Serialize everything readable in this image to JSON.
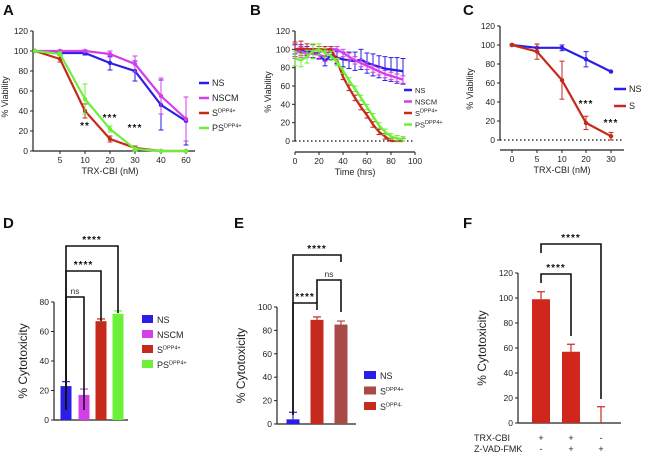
{
  "chart_data": [
    {
      "panel": "A",
      "type": "line",
      "title": "",
      "xlabel": "TRX-CBI (nM)",
      "ylabel": "% Viability",
      "ylim": [
        0,
        120
      ],
      "yticks": [
        "0",
        "20",
        "40",
        "60",
        "80",
        "100",
        "120"
      ],
      "x": [
        0,
        5,
        10,
        20,
        30,
        40,
        60
      ],
      "xticks": [
        "5",
        "10",
        "20",
        "30",
        "40",
        "60"
      ],
      "legend_position": "right",
      "series": [
        {
          "name": "NS",
          "sup": "",
          "color": "#2b1ee6",
          "values": [
            100,
            98,
            98,
            88,
            80,
            46,
            30
          ],
          "errors": [
            0,
            2,
            2,
            7,
            10,
            25,
            24
          ]
        },
        {
          "name": "NSCM",
          "sup": "",
          "color": "#d43ee8",
          "values": [
            100,
            100,
            100,
            97,
            87,
            55,
            32
          ],
          "errors": [
            0,
            1,
            1,
            3,
            8,
            18,
            22
          ]
        },
        {
          "name": "S",
          "sup": "DPP4+",
          "color": "#c52a1c",
          "values": [
            100,
            92,
            40,
            12,
            3,
            0,
            0
          ],
          "errors": [
            0,
            3,
            7,
            3,
            2,
            0,
            0
          ]
        },
        {
          "name": "PS",
          "sup": "DPP4+",
          "color": "#6cf03a",
          "values": [
            100,
            97,
            52,
            22,
            2,
            0,
            0
          ],
          "errors": [
            0,
            2,
            15,
            3,
            2,
            0,
            0
          ]
        }
      ],
      "annotations": [
        {
          "text": "**",
          "x": 10,
          "y": 22
        },
        {
          "text": "***",
          "x": 20,
          "y": 30
        },
        {
          "text": "***",
          "x": 30,
          "y": 20
        }
      ]
    },
    {
      "panel": "B",
      "type": "line",
      "title": "",
      "xlabel": "Time (hrs)",
      "ylabel": "% Viability",
      "ylim": [
        0,
        120
      ],
      "xlim": [
        0,
        100
      ],
      "yticks": [
        "0",
        "20",
        "40",
        "60",
        "80",
        "100",
        "120"
      ],
      "xticks": [
        "0",
        "20",
        "40",
        "60",
        "80",
        "100"
      ],
      "reference_line_y": 0,
      "legend_position": "right",
      "x": [
        0,
        5,
        10,
        15,
        20,
        25,
        30,
        35,
        40,
        45,
        50,
        55,
        60,
        65,
        70,
        75,
        80,
        85,
        90
      ],
      "series": [
        {
          "name": "NS",
          "sup": "",
          "color": "#2b1ee6",
          "values": [
            100,
            100,
            98,
            96,
            95,
            87,
            94,
            91,
            89,
            88,
            87,
            89,
            85,
            83,
            81,
            79,
            78,
            77,
            76
          ],
          "errors": [
            5,
            5,
            5,
            5,
            5,
            5,
            5,
            7,
            8,
            9,
            10,
            11,
            11,
            12,
            12,
            13,
            13,
            14,
            14
          ]
        },
        {
          "name": "NSCM",
          "sup": "",
          "color": "#d43ee8",
          "values": [
            98,
            97,
            96,
            95,
            94,
            92,
            100,
            100,
            96,
            92,
            88,
            85,
            82,
            79,
            76,
            73,
            71,
            69,
            67
          ],
          "errors": [
            8,
            6,
            5,
            5,
            5,
            5,
            3,
            3,
            4,
            4,
            4,
            4,
            4,
            4,
            4,
            4,
            4,
            4,
            4
          ]
        },
        {
          "name": "S",
          "sup": "DPP4+",
          "color": "#c52a1c",
          "values": [
            100,
            101,
            100,
            100,
            100,
            100,
            100,
            88,
            70,
            58,
            47,
            37,
            28,
            18,
            10,
            5,
            0,
            0,
            0
          ],
          "errors": [
            8,
            8,
            6,
            5,
            3,
            3,
            3,
            3,
            3,
            3,
            3,
            3,
            3,
            3,
            3,
            3,
            3,
            3,
            3
          ]
        },
        {
          "name": "PS",
          "sup": "DPP4+",
          "color": "#6cf03a",
          "values": [
            90,
            88,
            92,
            98,
            100,
            96,
            93,
            86,
            77,
            66,
            57,
            47,
            37,
            27,
            17,
            10,
            5,
            3,
            2
          ],
          "errors": [
            8,
            7,
            7,
            8,
            6,
            5,
            5,
            4,
            3,
            3,
            3,
            3,
            3,
            3,
            3,
            3,
            3,
            3,
            3
          ]
        }
      ]
    },
    {
      "panel": "C",
      "type": "line",
      "title": "",
      "xlabel": "TRX-CBI (nM)",
      "ylabel": "% Viability",
      "ylim": [
        0,
        120
      ],
      "yticks": [
        "0",
        "20",
        "40",
        "60",
        "80",
        "100",
        "120"
      ],
      "x": [
        0,
        5,
        10,
        20,
        30
      ],
      "xticks": [
        "0",
        "5",
        "10",
        "20",
        "30"
      ],
      "reference_line_y": 0,
      "legend_position": "right",
      "series": [
        {
          "name": "NS",
          "sup": "",
          "color": "#2b1ee6",
          "values": [
            100,
            97,
            97,
            85,
            72
          ],
          "errors": [
            1,
            4,
            3,
            8,
            0
          ]
        },
        {
          "name": "S",
          "sup": "",
          "color": "#c52a1c",
          "values": [
            100,
            93,
            63,
            18,
            4
          ],
          "errors": [
            1,
            8,
            20,
            7,
            4
          ]
        }
      ],
      "annotations": [
        {
          "text": "***",
          "x": 20,
          "y": 35
        },
        {
          "text": "***",
          "x": 30,
          "y": 15
        }
      ]
    },
    {
      "panel": "D",
      "type": "bar",
      "title": "",
      "xlabel": "",
      "ylabel": "% Cytotoxicity",
      "ylim": [
        0,
        80
      ],
      "yticks": [
        "0",
        "20",
        "40",
        "60",
        "80"
      ],
      "categories": [
        "NS",
        "NSCM",
        "SDPP4+",
        "PSDPP4+"
      ],
      "legend": [
        {
          "name": "NS",
          "sup": "",
          "color": "#2b1ee6"
        },
        {
          "name": "NSCM",
          "sup": "",
          "color": "#d43ee8"
        },
        {
          "name": "S",
          "sup": "DPP4+",
          "color": "#c52a1c"
        },
        {
          "name": "PS",
          "sup": "DPP4+",
          "color": "#6cf03a"
        }
      ],
      "values": [
        23,
        17,
        67,
        72
      ],
      "errors": [
        3,
        4,
        1.5,
        2
      ],
      "legend_position": "right",
      "significance": [
        {
          "from": 0,
          "to": 1,
          "label": "ns"
        },
        {
          "from": 0,
          "to": 2,
          "label": "****"
        },
        {
          "from": 0,
          "to": 3,
          "label": "****"
        }
      ]
    },
    {
      "panel": "E",
      "type": "bar",
      "title": "",
      "xlabel": "",
      "ylabel": "% Cytotoxicity",
      "ylim": [
        0,
        100
      ],
      "yticks": [
        "0",
        "20",
        "40",
        "60",
        "80",
        "100"
      ],
      "categories": [
        "NS",
        "SDPP4-",
        "SDPP4+"
      ],
      "bar_colors": [
        "#2b1ee6",
        "#c52a1c",
        "#a84a45"
      ],
      "legend": [
        {
          "name": "NS",
          "sup": "",
          "color": "#2b1ee6"
        },
        {
          "name": "S",
          "sup": "DPP4+",
          "color": "#a84a45"
        },
        {
          "name": "S",
          "sup": "DPP4-",
          "color": "#c52a1c"
        }
      ],
      "values": [
        4,
        89,
        85
      ],
      "errors": [
        6,
        2.5,
        3
      ],
      "legend_position": "right",
      "significance": [
        {
          "from": 0,
          "to": 1,
          "label": "****"
        },
        {
          "from": 1,
          "to": 2,
          "label": "ns"
        },
        {
          "from": 0,
          "to": 2,
          "label": "****"
        }
      ]
    },
    {
      "panel": "F",
      "type": "bar",
      "title": "",
      "xlabel": "",
      "ylabel": "% Cytotoxicity",
      "ylim": [
        0,
        120
      ],
      "yticks": [
        "0",
        "20",
        "40",
        "60",
        "80",
        "100",
        "120"
      ],
      "categories": [
        "1",
        "2",
        "3"
      ],
      "bar_color": "#d0261c",
      "values": [
        99,
        57,
        0
      ],
      "errors": [
        6,
        6,
        13
      ],
      "conditions": [
        {
          "label": "TRX-CBI",
          "marks": [
            "+",
            "+",
            "-"
          ]
        },
        {
          "label": "Z-VAD-FMK",
          "marks": [
            "-",
            "+",
            "+"
          ]
        }
      ],
      "significance": [
        {
          "from": 0,
          "to": 1,
          "label": "****"
        },
        {
          "from": 0,
          "to": 2,
          "label": "****"
        }
      ]
    }
  ]
}
